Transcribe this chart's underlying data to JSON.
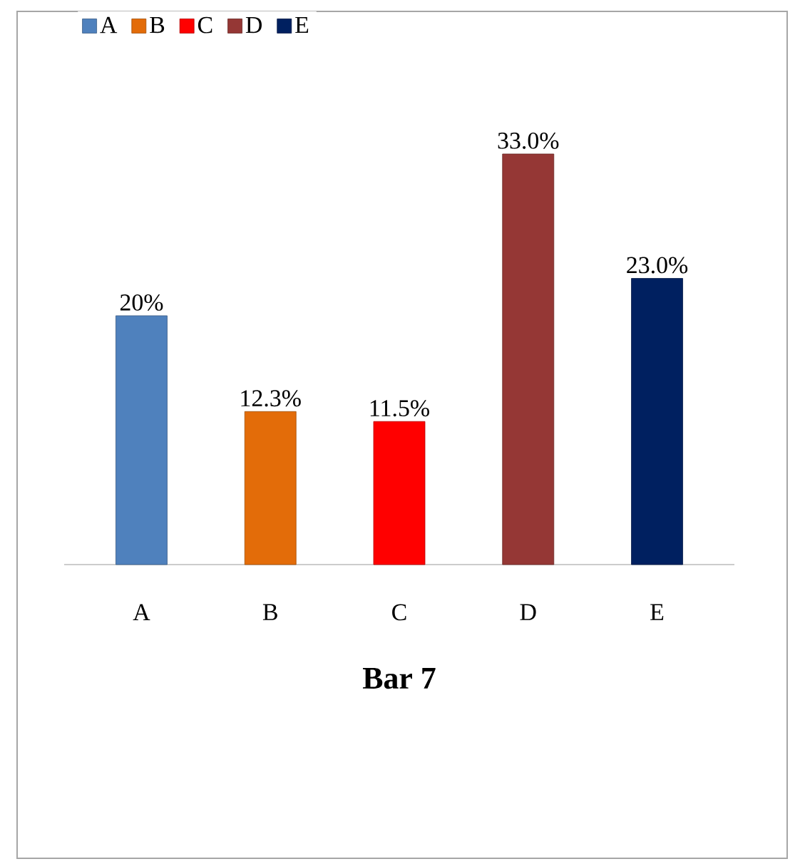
{
  "chart_data": {
    "type": "bar",
    "title": "**Bar 7**",
    "categories": [
      "A",
      "B",
      "C",
      "D",
      "E"
    ],
    "legend": "top left",
    "series": [
      {
        "name": "A",
        "color": "#4f81bd",
        "values": [
          20,
          null,
          null,
          null,
          null
        ],
        "value_labels": [
          "20%",
          null,
          null,
          null,
          null
        ]
      },
      {
        "name": "B",
        "color": "#e36c09",
        "values": [
          null,
          12.3,
          null,
          null,
          null
        ],
        "value_labels": [
          null,
          "12.3%",
          null,
          null,
          null
        ]
      },
      {
        "name": "C",
        "color": "#ff0000",
        "values": [
          null,
          null,
          11.5,
          null,
          null
        ],
        "value_labels": [
          null,
          null,
          "11.5%",
          null,
          null
        ]
      },
      {
        "name": "D",
        "color": "#953735",
        "values": [
          null,
          null,
          null,
          33.0,
          null
        ],
        "value_labels": [
          null,
          null,
          null,
          "33.0%",
          null
        ]
      },
      {
        "name": "E",
        "color": "#002060",
        "values": [
          null,
          null,
          null,
          null,
          23.0
        ],
        "value_labels": [
          null,
          null,
          null,
          null,
          "23.0%"
        ]
      }
    ]
  }
}
